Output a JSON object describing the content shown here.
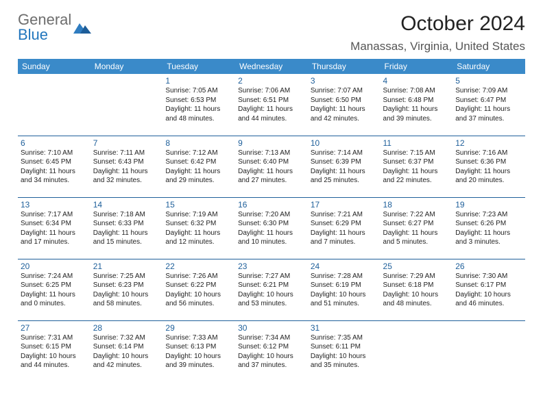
{
  "brand": {
    "line1": "General",
    "line2": "Blue"
  },
  "title": "October 2024",
  "location": "Manassas, Virginia, United States",
  "colors": {
    "header_bg": "#3a8ac9",
    "header_text": "#ffffff",
    "row_border": "#1e5f9a",
    "daynum": "#1e5f9a",
    "brand_gray": "#6d6d6d",
    "brand_blue": "#2176bd"
  },
  "weekdays": [
    "Sunday",
    "Monday",
    "Tuesday",
    "Wednesday",
    "Thursday",
    "Friday",
    "Saturday"
  ],
  "weeks": [
    [
      null,
      null,
      {
        "n": "1",
        "sr": "Sunrise: 7:05 AM",
        "ss": "Sunset: 6:53 PM",
        "d1": "Daylight: 11 hours",
        "d2": "and 48 minutes."
      },
      {
        "n": "2",
        "sr": "Sunrise: 7:06 AM",
        "ss": "Sunset: 6:51 PM",
        "d1": "Daylight: 11 hours",
        "d2": "and 44 minutes."
      },
      {
        "n": "3",
        "sr": "Sunrise: 7:07 AM",
        "ss": "Sunset: 6:50 PM",
        "d1": "Daylight: 11 hours",
        "d2": "and 42 minutes."
      },
      {
        "n": "4",
        "sr": "Sunrise: 7:08 AM",
        "ss": "Sunset: 6:48 PM",
        "d1": "Daylight: 11 hours",
        "d2": "and 39 minutes."
      },
      {
        "n": "5",
        "sr": "Sunrise: 7:09 AM",
        "ss": "Sunset: 6:47 PM",
        "d1": "Daylight: 11 hours",
        "d2": "and 37 minutes."
      }
    ],
    [
      {
        "n": "6",
        "sr": "Sunrise: 7:10 AM",
        "ss": "Sunset: 6:45 PM",
        "d1": "Daylight: 11 hours",
        "d2": "and 34 minutes."
      },
      {
        "n": "7",
        "sr": "Sunrise: 7:11 AM",
        "ss": "Sunset: 6:43 PM",
        "d1": "Daylight: 11 hours",
        "d2": "and 32 minutes."
      },
      {
        "n": "8",
        "sr": "Sunrise: 7:12 AM",
        "ss": "Sunset: 6:42 PM",
        "d1": "Daylight: 11 hours",
        "d2": "and 29 minutes."
      },
      {
        "n": "9",
        "sr": "Sunrise: 7:13 AM",
        "ss": "Sunset: 6:40 PM",
        "d1": "Daylight: 11 hours",
        "d2": "and 27 minutes."
      },
      {
        "n": "10",
        "sr": "Sunrise: 7:14 AM",
        "ss": "Sunset: 6:39 PM",
        "d1": "Daylight: 11 hours",
        "d2": "and 25 minutes."
      },
      {
        "n": "11",
        "sr": "Sunrise: 7:15 AM",
        "ss": "Sunset: 6:37 PM",
        "d1": "Daylight: 11 hours",
        "d2": "and 22 minutes."
      },
      {
        "n": "12",
        "sr": "Sunrise: 7:16 AM",
        "ss": "Sunset: 6:36 PM",
        "d1": "Daylight: 11 hours",
        "d2": "and 20 minutes."
      }
    ],
    [
      {
        "n": "13",
        "sr": "Sunrise: 7:17 AM",
        "ss": "Sunset: 6:34 PM",
        "d1": "Daylight: 11 hours",
        "d2": "and 17 minutes."
      },
      {
        "n": "14",
        "sr": "Sunrise: 7:18 AM",
        "ss": "Sunset: 6:33 PM",
        "d1": "Daylight: 11 hours",
        "d2": "and 15 minutes."
      },
      {
        "n": "15",
        "sr": "Sunrise: 7:19 AM",
        "ss": "Sunset: 6:32 PM",
        "d1": "Daylight: 11 hours",
        "d2": "and 12 minutes."
      },
      {
        "n": "16",
        "sr": "Sunrise: 7:20 AM",
        "ss": "Sunset: 6:30 PM",
        "d1": "Daylight: 11 hours",
        "d2": "and 10 minutes."
      },
      {
        "n": "17",
        "sr": "Sunrise: 7:21 AM",
        "ss": "Sunset: 6:29 PM",
        "d1": "Daylight: 11 hours",
        "d2": "and 7 minutes."
      },
      {
        "n": "18",
        "sr": "Sunrise: 7:22 AM",
        "ss": "Sunset: 6:27 PM",
        "d1": "Daylight: 11 hours",
        "d2": "and 5 minutes."
      },
      {
        "n": "19",
        "sr": "Sunrise: 7:23 AM",
        "ss": "Sunset: 6:26 PM",
        "d1": "Daylight: 11 hours",
        "d2": "and 3 minutes."
      }
    ],
    [
      {
        "n": "20",
        "sr": "Sunrise: 7:24 AM",
        "ss": "Sunset: 6:25 PM",
        "d1": "Daylight: 11 hours",
        "d2": "and 0 minutes."
      },
      {
        "n": "21",
        "sr": "Sunrise: 7:25 AM",
        "ss": "Sunset: 6:23 PM",
        "d1": "Daylight: 10 hours",
        "d2": "and 58 minutes."
      },
      {
        "n": "22",
        "sr": "Sunrise: 7:26 AM",
        "ss": "Sunset: 6:22 PM",
        "d1": "Daylight: 10 hours",
        "d2": "and 56 minutes."
      },
      {
        "n": "23",
        "sr": "Sunrise: 7:27 AM",
        "ss": "Sunset: 6:21 PM",
        "d1": "Daylight: 10 hours",
        "d2": "and 53 minutes."
      },
      {
        "n": "24",
        "sr": "Sunrise: 7:28 AM",
        "ss": "Sunset: 6:19 PM",
        "d1": "Daylight: 10 hours",
        "d2": "and 51 minutes."
      },
      {
        "n": "25",
        "sr": "Sunrise: 7:29 AM",
        "ss": "Sunset: 6:18 PM",
        "d1": "Daylight: 10 hours",
        "d2": "and 48 minutes."
      },
      {
        "n": "26",
        "sr": "Sunrise: 7:30 AM",
        "ss": "Sunset: 6:17 PM",
        "d1": "Daylight: 10 hours",
        "d2": "and 46 minutes."
      }
    ],
    [
      {
        "n": "27",
        "sr": "Sunrise: 7:31 AM",
        "ss": "Sunset: 6:15 PM",
        "d1": "Daylight: 10 hours",
        "d2": "and 44 minutes."
      },
      {
        "n": "28",
        "sr": "Sunrise: 7:32 AM",
        "ss": "Sunset: 6:14 PM",
        "d1": "Daylight: 10 hours",
        "d2": "and 42 minutes."
      },
      {
        "n": "29",
        "sr": "Sunrise: 7:33 AM",
        "ss": "Sunset: 6:13 PM",
        "d1": "Daylight: 10 hours",
        "d2": "and 39 minutes."
      },
      {
        "n": "30",
        "sr": "Sunrise: 7:34 AM",
        "ss": "Sunset: 6:12 PM",
        "d1": "Daylight: 10 hours",
        "d2": "and 37 minutes."
      },
      {
        "n": "31",
        "sr": "Sunrise: 7:35 AM",
        "ss": "Sunset: 6:11 PM",
        "d1": "Daylight: 10 hours",
        "d2": "and 35 minutes."
      },
      null,
      null
    ]
  ]
}
